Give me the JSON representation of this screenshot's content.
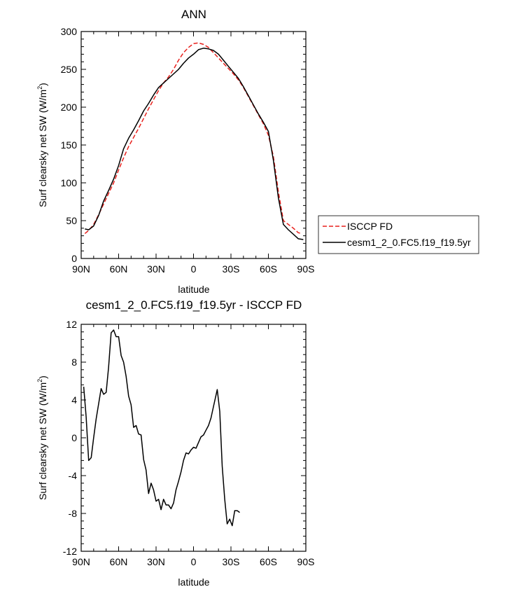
{
  "chart_data": [
    {
      "type": "line",
      "title": "ANN",
      "xlabel": "latitude",
      "ylabel": "Surf clearsky net SW (W/m",
      "ylabel_sup": "2",
      "ylabel_close": ")",
      "xlim": [
        90,
        -90
      ],
      "ylim": [
        0,
        300
      ],
      "x_ticks": [
        {
          "value": 90,
          "label": "90N"
        },
        {
          "value": 60,
          "label": "60N"
        },
        {
          "value": 30,
          "label": "30N"
        },
        {
          "value": 0,
          "label": "0"
        },
        {
          "value": -30,
          "label": "30S"
        },
        {
          "value": -60,
          "label": "60S"
        },
        {
          "value": -90,
          "label": "90S"
        }
      ],
      "y_ticks": [
        {
          "value": 0,
          "label": "0"
        },
        {
          "value": 50,
          "label": "50"
        },
        {
          "value": 100,
          "label": "100"
        },
        {
          "value": 150,
          "label": "150"
        },
        {
          "value": 200,
          "label": "200"
        },
        {
          "value": 250,
          "label": "250"
        },
        {
          "value": 300,
          "label": "300"
        }
      ],
      "legend_position": "right",
      "series": [
        {
          "name": "ISCCP FD",
          "color": "#e8211d",
          "dash": "dashed",
          "points": [
            [
              87,
              33
            ],
            [
              84,
              37
            ],
            [
              80,
              45
            ],
            [
              76,
              58
            ],
            [
              72,
              72
            ],
            [
              68,
              86
            ],
            [
              64,
              100
            ],
            [
              60,
              117
            ],
            [
              56,
              133
            ],
            [
              52,
              148
            ],
            [
              48,
              160
            ],
            [
              44,
              172
            ],
            [
              40,
              185
            ],
            [
              36,
              198
            ],
            [
              32,
              210
            ],
            [
              28,
              222
            ],
            [
              24,
              232
            ],
            [
              20,
              240
            ],
            [
              16,
              250
            ],
            [
              12,
              262
            ],
            [
              8,
              272
            ],
            [
              4,
              279
            ],
            [
              0,
              284
            ],
            [
              -4,
              285
            ],
            [
              -8,
              283
            ],
            [
              -12,
              279
            ],
            [
              -16,
              272
            ],
            [
              -20,
              265
            ],
            [
              -24,
              258
            ],
            [
              -28,
              251
            ],
            [
              -32,
              244
            ],
            [
              -36,
              236
            ],
            [
              -40,
              226
            ],
            [
              -44,
              214
            ],
            [
              -48,
              202
            ],
            [
              -52,
              190
            ],
            [
              -56,
              178
            ],
            [
              -60,
              163
            ],
            [
              -64,
              135
            ],
            [
              -68,
              88
            ],
            [
              -72,
              50
            ],
            [
              -76,
              45
            ],
            [
              -80,
              40
            ],
            [
              -84,
              34
            ],
            [
              -87,
              33
            ]
          ]
        },
        {
          "name": "cesm1_2_0.FC5.f19_f19.5yr",
          "color": "#000000",
          "dash": "solid",
          "points": [
            [
              87,
              39
            ],
            [
              84,
              38
            ],
            [
              80,
              43
            ],
            [
              76,
              57
            ],
            [
              72,
              76
            ],
            [
              68,
              90
            ],
            [
              64,
              105
            ],
            [
              60,
              123
            ],
            [
              56,
              145
            ],
            [
              52,
              159
            ],
            [
              48,
              170
            ],
            [
              44,
              182
            ],
            [
              40,
              195
            ],
            [
              36,
              205
            ],
            [
              32,
              216
            ],
            [
              28,
              226
            ],
            [
              24,
              232
            ],
            [
              20,
              238
            ],
            [
              16,
              244
            ],
            [
              12,
              250
            ],
            [
              8,
              258
            ],
            [
              4,
              265
            ],
            [
              0,
              270
            ],
            [
              -4,
              276
            ],
            [
              -8,
              278
            ],
            [
              -12,
              277
            ],
            [
              -16,
              275
            ],
            [
              -20,
              270
            ],
            [
              -24,
              262
            ],
            [
              -28,
              254
            ],
            [
              -32,
              246
            ],
            [
              -36,
              238
            ],
            [
              -40,
              227
            ],
            [
              -44,
              215
            ],
            [
              -48,
              203
            ],
            [
              -52,
              191
            ],
            [
              -56,
              180
            ],
            [
              -60,
              168
            ],
            [
              -64,
              130
            ],
            [
              -68,
              80
            ],
            [
              -72,
              45
            ],
            [
              -76,
              38
            ],
            [
              -80,
              32
            ],
            [
              -84,
              26
            ],
            [
              -88,
              25
            ]
          ]
        }
      ]
    },
    {
      "type": "line",
      "title": "cesm1_2_0.FC5.f19_f19.5yr - ISCCP FD",
      "xlabel": "latitude",
      "ylabel": "Surf clearsky net SW (W/m",
      "ylabel_sup": "2",
      "ylabel_close": ")",
      "xlim": [
        90,
        -90
      ],
      "ylim": [
        -12,
        12
      ],
      "x_ticks": [
        {
          "value": 90,
          "label": "90N"
        },
        {
          "value": 60,
          "label": "60N"
        },
        {
          "value": 30,
          "label": "30N"
        },
        {
          "value": 0,
          "label": "0"
        },
        {
          "value": -30,
          "label": "30S"
        },
        {
          "value": -60,
          "label": "60S"
        },
        {
          "value": -90,
          "label": "90S"
        }
      ],
      "y_ticks": [
        {
          "value": -12,
          "label": "-12"
        },
        {
          "value": -8,
          "label": "-8"
        },
        {
          "value": -4,
          "label": "-4"
        },
        {
          "value": 0,
          "label": "0"
        },
        {
          "value": 4,
          "label": "4"
        },
        {
          "value": 8,
          "label": "8"
        },
        {
          "value": 12,
          "label": "12"
        }
      ],
      "series": [
        {
          "color": "#000000",
          "dash": "solid",
          "points": [
            [
              88,
              5.4
            ],
            [
              86,
              2.2
            ],
            [
              84,
              -2.4
            ],
            [
              82,
              -2.1
            ],
            [
              80,
              0
            ],
            [
              78,
              2.0
            ],
            [
              74,
              5.2
            ],
            [
              72,
              4.6
            ],
            [
              70,
              4.8
            ],
            [
              68,
              7.5
            ],
            [
              66,
              11.1
            ],
            [
              64,
              11.4
            ],
            [
              62,
              10.7
            ],
            [
              60,
              10.7
            ],
            [
              58,
              8.7
            ],
            [
              56,
              8.0
            ],
            [
              54,
              6.5
            ],
            [
              52,
              4.4
            ],
            [
              50,
              3.5
            ],
            [
              48,
              1.1
            ],
            [
              46,
              1.3
            ],
            [
              44,
              0.4
            ],
            [
              42,
              0.3
            ],
            [
              40,
              -2.3
            ],
            [
              38,
              -3.4
            ],
            [
              36,
              -5.9
            ],
            [
              34,
              -4.8
            ],
            [
              32,
              -5.5
            ],
            [
              30,
              -6.7
            ],
            [
              28,
              -6.5
            ],
            [
              26,
              -7.6
            ],
            [
              24,
              -6.5
            ],
            [
              22,
              -7.1
            ],
            [
              20,
              -7.1
            ],
            [
              18,
              -7.5
            ],
            [
              16,
              -6.9
            ],
            [
              14,
              -5.5
            ],
            [
              12,
              -4.6
            ],
            [
              10,
              -3.6
            ],
            [
              8,
              -2.4
            ],
            [
              6,
              -1.6
            ],
            [
              4,
              -1.7
            ],
            [
              2,
              -1.3
            ],
            [
              0,
              -1.0
            ],
            [
              -2,
              -1.1
            ],
            [
              -4,
              -0.5
            ],
            [
              -6,
              0.1
            ],
            [
              -8,
              0.3
            ],
            [
              -10,
              0.8
            ],
            [
              -12,
              1.3
            ],
            [
              -14,
              2.1
            ],
            [
              -16,
              3.3
            ],
            [
              -18,
              4.5
            ],
            [
              -19,
              5.1
            ],
            [
              -21,
              2.8
            ],
            [
              -23,
              -3.0
            ],
            [
              -25,
              -6.5
            ],
            [
              -27,
              -9.1
            ],
            [
              -29,
              -8.6
            ],
            [
              -31,
              -9.3
            ],
            [
              -33,
              -7.7
            ],
            [
              -35,
              -7.7
            ],
            [
              -37,
              -7.9
            ]
          ]
        }
      ]
    }
  ]
}
